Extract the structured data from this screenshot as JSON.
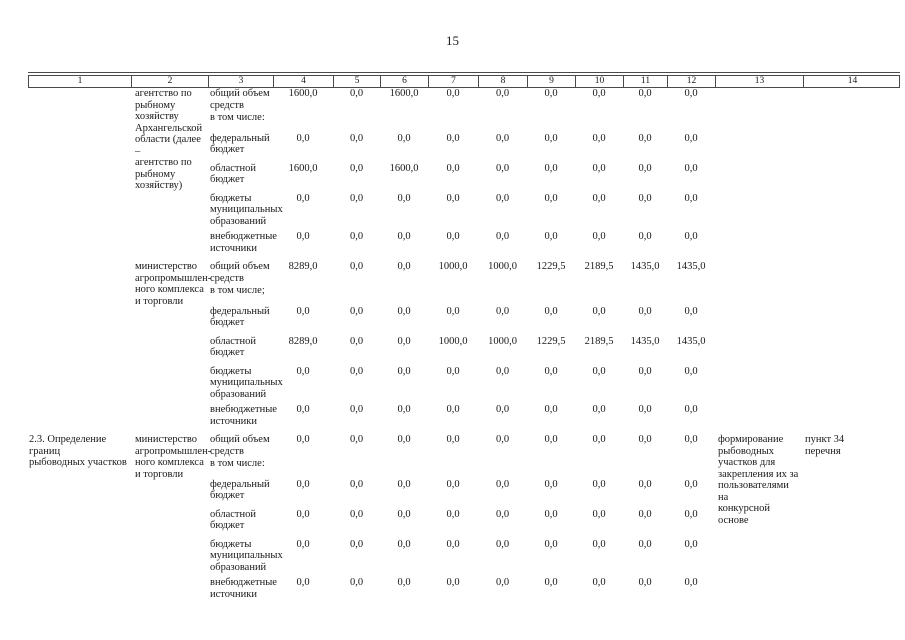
{
  "page": {
    "number": "15"
  },
  "table": {
    "header_columns": [
      "1",
      "2",
      "3",
      "4",
      "5",
      "6",
      "7",
      "8",
      "9",
      "10",
      "11",
      "12",
      "13",
      "14"
    ],
    "row_gap_classes": [
      "pb1",
      "pb9",
      "pb7",
      "pb7",
      "pb4",
      "pb0"
    ],
    "blocks": [
      {
        "activity": "",
        "executor": "агентство по\nрыбному\nхозяйству\nАрхангельской\nобласти (далее –\nагентство по\nрыбному\nхозяйству)",
        "rows": [
          {
            "label": "общий объем\nсредств",
            "values": [
              "1600,0",
              "0,0",
              "1600,0",
              "0,0",
              "0,0",
              "0,0",
              "0,0",
              "0,0",
              "0,0"
            ]
          },
          {
            "label": "в том числе:",
            "values": []
          },
          {
            "label": "федеральный\nбюджет",
            "values": [
              "0,0",
              "0,0",
              "0,0",
              "0,0",
              "0,0",
              "0,0",
              "0,0",
              "0,0",
              "0,0"
            ]
          },
          {
            "label": "областной\nбюджет",
            "values": [
              "1600,0",
              "0,0",
              "1600,0",
              "0,0",
              "0,0",
              "0,0",
              "0,0",
              "0,0",
              "0,0"
            ]
          },
          {
            "label": "бюджеты\nмуниципальных\nобразований",
            "values": [
              "0,0",
              "0,0",
              "0,0",
              "0,0",
              "0,0",
              "0,0",
              "0,0",
              "0,0",
              "0,0"
            ]
          },
          {
            "label": "внебюджетные\nисточники",
            "values": [
              "0,0",
              "0,0",
              "0,0",
              "0,0",
              "0,0",
              "0,0",
              "0,0",
              "0,0",
              "0,0"
            ]
          }
        ],
        "result": "",
        "reference": ""
      },
      {
        "activity": "",
        "executor": "министерство\nагропромышлен-\nного комплекса\nи торговли",
        "rows": [
          {
            "label": "общий объем\nсредств",
            "values": [
              "8289,0",
              "0,0",
              "0,0",
              "1000,0",
              "1000,0",
              "1229,5",
              "2189,5",
              "1435,0",
              "1435,0"
            ]
          },
          {
            "label": "в том числе;",
            "values": []
          },
          {
            "label": "федеральный\nбюджет",
            "values": [
              "0,0",
              "0,0",
              "0,0",
              "0,0",
              "0,0",
              "0,0",
              "0,0",
              "0,0",
              "0,0"
            ]
          },
          {
            "label": "областной\nбюджет",
            "values": [
              "8289,0",
              "0,0",
              "0,0",
              "1000,0",
              "1000,0",
              "1229,5",
              "2189,5",
              "1435,0",
              "1435,0"
            ]
          },
          {
            "label": "бюджеты\nмуниципальных\nобразований",
            "values": [
              "0,0",
              "0,0",
              "0,0",
              "0,0",
              "0,0",
              "0,0",
              "0,0",
              "0,0",
              "0,0"
            ]
          },
          {
            "label": "внебюджетные\nисточники",
            "values": [
              "0,0",
              "0,0",
              "0,0",
              "0,0",
              "0,0",
              "0,0",
              "0,0",
              "0,0",
              "0,0"
            ]
          }
        ],
        "result": "",
        "reference": ""
      },
      {
        "activity": "2.3. Определение границ\nрыбоводных участков",
        "executor": "министерство\nагропромышлен-\nного комплекса\nи торговли",
        "rows": [
          {
            "label": "общий объем\nсредств",
            "values": [
              "0,0",
              "0,0",
              "0,0",
              "0,0",
              "0,0",
              "0,0",
              "0,0",
              "0,0",
              "0,0"
            ]
          },
          {
            "label": "в том числе:",
            "values": []
          },
          {
            "label": "федеральный\nбюджет",
            "values": [
              "0,0",
              "0,0",
              "0,0",
              "0,0",
              "0,0",
              "0,0",
              "0,0",
              "0,0",
              "0,0"
            ]
          },
          {
            "label": "областной\nбюджет",
            "values": [
              "0,0",
              "0,0",
              "0,0",
              "0,0",
              "0,0",
              "0,0",
              "0,0",
              "0,0",
              "0,0"
            ]
          },
          {
            "label": "бюджеты\nмуниципальных\nобразований",
            "values": [
              "0,0",
              "0,0",
              "0,0",
              "0,0",
              "0,0",
              "0,0",
              "0,0",
              "0,0",
              "0,0"
            ]
          },
          {
            "label": "внебюджетные\nисточники",
            "values": [
              "0,0",
              "0,0",
              "0,0",
              "0,0",
              "0,0",
              "0,0",
              "0,0",
              "0,0",
              "0,0"
            ]
          }
        ],
        "result": "формирование\nрыбоводных\nучастков для\nзакрепления их за\nпользователями на\nконкурсной основе",
        "reference": "пункт 34\nперечня"
      }
    ]
  }
}
